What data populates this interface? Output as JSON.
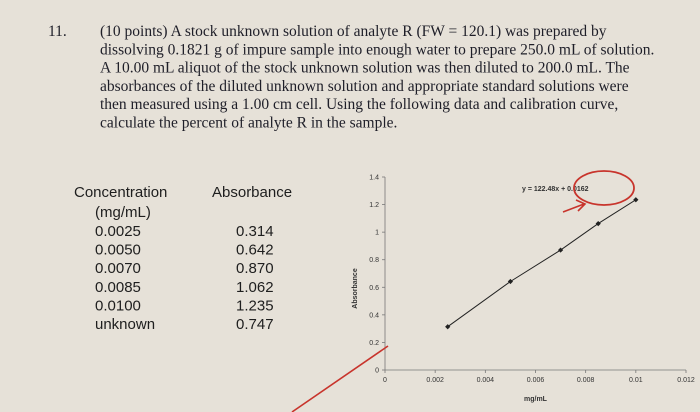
{
  "problem": {
    "number": "11.",
    "lines": [
      "(10 points) A stock unknown solution of analyte R (FW = 120.1) was prepared by",
      "dissolving 0.1821 g of impure sample into enough water to prepare 250.0 mL of solution.",
      "A 10.00 mL aliquot of the stock unknown solution was then diluted to 200.0 mL. The",
      "absorbances of the diluted unknown solution and appropriate standard solutions were",
      "then measured using a 1.00 cm cell.  Using the following data and calibration curve,",
      "calculate the percent of analyte R in the sample."
    ]
  },
  "table": {
    "headers": [
      {
        "name": "Concentration",
        "unit": "(mg/mL)"
      },
      {
        "name": "Absorbance"
      }
    ],
    "rows": [
      [
        "0.0025",
        "0.314"
      ],
      [
        "0.0050",
        "0.642"
      ],
      [
        "0.0070",
        "0.870"
      ],
      [
        "0.0085",
        "1.062"
      ],
      [
        "0.0100",
        "1.235"
      ],
      [
        "unknown",
        "0.747"
      ]
    ]
  },
  "chart_data": {
    "type": "line",
    "annotation": "y = 122.48x + 0.0162",
    "x_label": "mg/mL",
    "y_label": "Absorbance",
    "x": [
      0.0025,
      0.005,
      0.007,
      0.0085,
      0.01
    ],
    "series": [
      {
        "name": "Absorbance",
        "color": "#222222",
        "values": [
          0.314,
          0.642,
          0.87,
          1.062,
          1.235
        ]
      }
    ],
    "xlim": [
      0,
      0.012
    ],
    "xticks": [
      0,
      0.002,
      0.004,
      0.006,
      0.008,
      0.01,
      0.012
    ],
    "ylim": [
      0,
      1.4
    ],
    "yticks": [
      0,
      0.2,
      0.4,
      0.6,
      0.8,
      1,
      1.2,
      1.4
    ],
    "grid": false
  }
}
